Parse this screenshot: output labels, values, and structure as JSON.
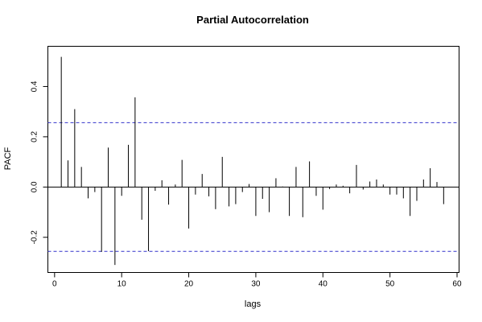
{
  "chart_data": {
    "type": "bar",
    "title": "Partial Autocorrelation",
    "xlabel": "lags",
    "ylabel": "PACF",
    "xlim": [
      -1,
      60.3
    ],
    "ylim": [
      -0.34,
      0.56
    ],
    "x_ticks": [
      "0",
      "10",
      "20",
      "30",
      "40",
      "50",
      "60"
    ],
    "y_ticks": [
      "-0.2",
      "0.0",
      "0.2",
      "0.4"
    ],
    "confidence_band": [
      -0.256,
      0.256
    ],
    "lags": [
      1,
      2,
      3,
      4,
      5,
      6,
      7,
      8,
      9,
      10,
      11,
      12,
      13,
      14,
      15,
      16,
      17,
      18,
      19,
      20,
      21,
      22,
      23,
      24,
      25,
      26,
      27,
      28,
      29,
      30,
      31,
      32,
      33,
      34,
      35,
      36,
      37,
      38,
      39,
      40,
      41,
      42,
      43,
      44,
      45,
      46,
      47,
      48,
      49,
      50,
      51,
      52,
      53,
      54,
      55,
      56,
      57,
      58
    ],
    "values": [
      0.518,
      0.106,
      0.31,
      0.08,
      -0.045,
      -0.02,
      -0.258,
      0.157,
      -0.31,
      -0.035,
      0.168,
      0.357,
      -0.13,
      -0.255,
      -0.015,
      0.027,
      -0.07,
      0.01,
      0.108,
      -0.165,
      -0.03,
      0.052,
      -0.037,
      -0.088,
      0.12,
      -0.077,
      -0.068,
      -0.02,
      0.012,
      -0.115,
      -0.047,
      -0.1,
      0.035,
      0.002,
      -0.115,
      0.08,
      -0.12,
      0.102,
      -0.035,
      -0.09,
      -0.008,
      0.01,
      0.005,
      -0.025,
      0.088,
      -0.01,
      0.022,
      0.03,
      0.01,
      -0.03,
      -0.03,
      -0.045,
      -0.115,
      -0.055,
      0.03,
      0.075,
      0.02,
      -0.068
    ]
  }
}
